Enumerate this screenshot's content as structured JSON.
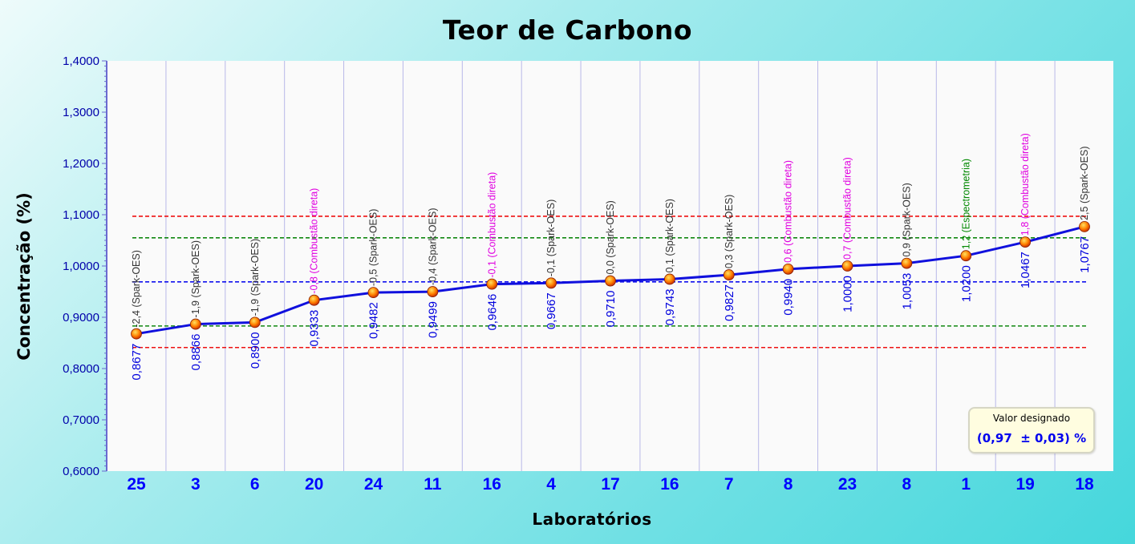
{
  "chart_data": {
    "type": "line",
    "title": "Teor de Carbono",
    "xlabel": "Laboratórios",
    "ylabel": "Concentração (%)",
    "ylim": [
      0.6,
      1.4
    ],
    "y_ticks": [
      "0,6000",
      "0,7000",
      "0,8000",
      "0,9000",
      "1,0000",
      "1,1000",
      "1,2000",
      "1,3000",
      "1,4000"
    ],
    "categories": [
      "25",
      "3",
      "6",
      "20",
      "24",
      "11",
      "16",
      "4",
      "17",
      "16",
      "7",
      "8",
      "23",
      "8",
      "1",
      "19",
      "18"
    ],
    "values": [
      0.8677,
      0.8866,
      0.89,
      0.9333,
      0.9482,
      0.9499,
      0.9646,
      0.9667,
      0.971,
      0.9743,
      0.9827,
      0.994,
      1.0,
      1.0053,
      1.02,
      1.0467,
      1.0767
    ],
    "value_labels": [
      "0,8677",
      "0,8866",
      "0,8900",
      "0,9333",
      "0,9482",
      "0,9499",
      "0,9646",
      "0,9667",
      "0,9710",
      "0,9743",
      "0,9827",
      "0,9940",
      "1,0000",
      "1,0053",
      "1,0200",
      "1,0467",
      "1,0767"
    ],
    "score_labels": [
      "-2,4",
      "-1,9",
      "-1,9",
      "-0,8",
      "-0,5",
      "-0,4",
      "-0,1",
      "-0,1",
      "0,0",
      "0,1",
      "0,3",
      "0,6",
      "0,7",
      "0,9",
      "1,2",
      "1,8",
      "2,5"
    ],
    "method_labels": [
      "(Spark-OES)",
      "(Spark-OES)",
      "(Spark-OES)",
      "(Combustão direta)",
      "(Spark-OES)",
      "(Spark-OES)",
      "(Combustão direta)",
      "(Spark-OES)",
      "(Spark-OES)",
      "(Spark-OES)",
      "(Spark-OES)",
      "(Combustão direta)",
      "(Combustão direta)",
      "(Spark-OES)",
      "(Espectrometria)",
      "(Combustão direta)",
      "(Spark-OES)"
    ],
    "method_colors": {
      "(Spark-OES)": "#333333",
      "(Combustão direta)": "#e000e0",
      "(Espectrometria)": "#008800"
    },
    "reference_lines": [
      {
        "value": 1.097,
        "color": "#ee1111",
        "style": "dashed"
      },
      {
        "value": 0.841,
        "color": "#ee1111",
        "style": "dashed"
      },
      {
        "value": 1.055,
        "color": "#118811",
        "style": "dashed"
      },
      {
        "value": 0.883,
        "color": "#118811",
        "style": "dashed"
      },
      {
        "value": 0.969,
        "color": "#1111ee",
        "style": "dashed"
      }
    ],
    "grid": "vertical",
    "legend": {
      "title": "Valor designado",
      "value": "(0,97  ± 0,03) %",
      "placement": "bottom-right"
    },
    "colors": {
      "line": "#1010dd",
      "marker": "#ff6a00",
      "value_label": "#0000dd",
      "x_tick": "#0000ff",
      "y_tick": "#0000aa"
    }
  }
}
